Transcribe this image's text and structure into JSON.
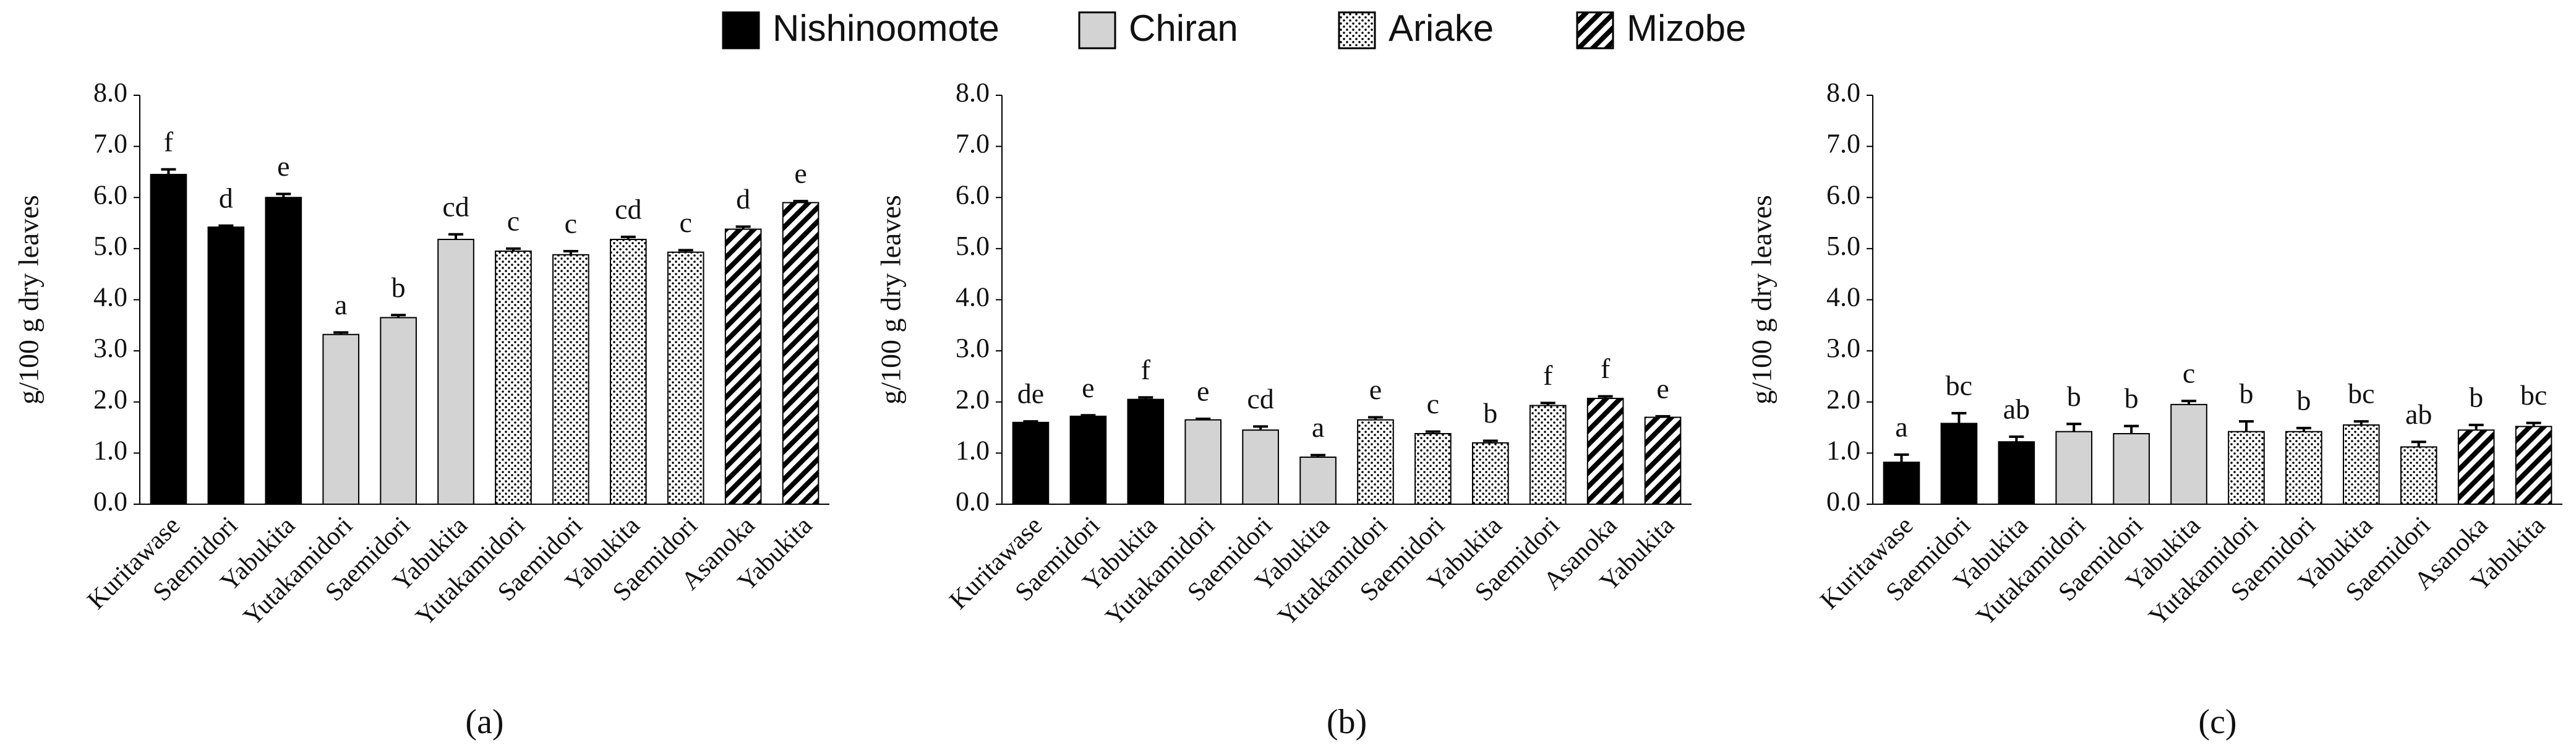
{
  "legend": [
    {
      "name": "Nishinoomote",
      "pattern": "solid",
      "color": "#000000"
    },
    {
      "name": "Chiran",
      "pattern": "solid",
      "color": "#d3d3d3"
    },
    {
      "name": "Ariake",
      "pattern": "dots",
      "color": "#000000"
    },
    {
      "name": "Mizobe",
      "pattern": "diagonal",
      "color": "#000000"
    }
  ],
  "chart_data": [
    {
      "type": "bar",
      "label": "(a)",
      "ylabel": "g/100 g dry leaves",
      "ylim": [
        0,
        8
      ],
      "yticks": [
        {
          "value": 0,
          "label": "0.0"
        },
        {
          "value": 1,
          "label": "1.0"
        },
        {
          "value": 2,
          "label": "2.0"
        },
        {
          "value": 3,
          "label": "3.0"
        },
        {
          "value": 4,
          "label": "4.0"
        },
        {
          "value": 5,
          "label": "5.0"
        },
        {
          "value": 6,
          "label": "6.0"
        },
        {
          "value": 7,
          "label": "7.0"
        },
        {
          "value": 8,
          "label": "8.0"
        }
      ],
      "groups": [
        {
          "categories": [
            "Kuritawase",
            "Saemidori",
            "Yabukita"
          ],
          "values": [
            6.45,
            5.42,
            6.0
          ],
          "errors": [
            0.1,
            0.03,
            0.07
          ],
          "letters": [
            "f",
            "d",
            "e"
          ]
        },
        {
          "categories": [
            "Yutakamidori",
            "Saemidori",
            "Yabukita"
          ],
          "values": [
            3.32,
            3.65,
            5.18
          ],
          "errors": [
            0.04,
            0.05,
            0.1
          ],
          "letters": [
            "a",
            "b",
            "cd"
          ]
        },
        {
          "categories": [
            "Yutakamidori",
            "Saemidori",
            "Yabukita",
            "Saemidori"
          ],
          "values": [
            4.95,
            4.88,
            5.18,
            4.93
          ],
          "errors": [
            0.05,
            0.07,
            0.05,
            0.04
          ],
          "letters": [
            "c",
            "c",
            "cd",
            "c"
          ]
        },
        {
          "categories": [
            "Asanoka",
            "Yabukita"
          ],
          "values": [
            5.38,
            5.9
          ],
          "errors": [
            0.05,
            0.03
          ],
          "letters": [
            "d",
            "e"
          ]
        }
      ]
    },
    {
      "type": "bar",
      "label": "(b)",
      "ylabel": "g/100 g dry leaves",
      "ylim": [
        0,
        8
      ],
      "yticks": [
        {
          "value": 0,
          "label": "0.0"
        },
        {
          "value": 1,
          "label": "1.0"
        },
        {
          "value": 2,
          "label": "2.0"
        },
        {
          "value": 3,
          "label": "3.0"
        },
        {
          "value": 4,
          "label": "4.0"
        },
        {
          "value": 5,
          "label": "5.0"
        },
        {
          "value": 6,
          "label": "6.0"
        },
        {
          "value": 7,
          "label": "7.0"
        },
        {
          "value": 8,
          "label": "8.0"
        }
      ],
      "groups": [
        {
          "categories": [
            "Kuritawase",
            "Saemidori",
            "Yabukita"
          ],
          "values": [
            1.6,
            1.72,
            2.05
          ],
          "errors": [
            0.02,
            0.02,
            0.04
          ],
          "letters": [
            "de",
            "e",
            "f"
          ]
        },
        {
          "categories": [
            "Yutakamidori",
            "Saemidori",
            "Yabukita"
          ],
          "values": [
            1.65,
            1.45,
            0.92
          ],
          "errors": [
            0.02,
            0.07,
            0.04
          ],
          "letters": [
            "e",
            "cd",
            "a"
          ]
        },
        {
          "categories": [
            "Yutakamidori",
            "Saemidori",
            "Yabukita",
            "Saemidori"
          ],
          "values": [
            1.65,
            1.38,
            1.2,
            1.93
          ],
          "errors": [
            0.05,
            0.04,
            0.04,
            0.05
          ],
          "letters": [
            "e",
            "c",
            "b",
            "f"
          ]
        },
        {
          "categories": [
            "Asanoka",
            "Yabukita"
          ],
          "values": [
            2.07,
            1.7
          ],
          "errors": [
            0.04,
            0.02
          ],
          "letters": [
            "f",
            "e"
          ]
        }
      ]
    },
    {
      "type": "bar",
      "label": "(c)",
      "ylabel": "g/100 g dry leaves",
      "ylim": [
        0,
        8
      ],
      "yticks": [
        {
          "value": 0,
          "label": "0.0"
        },
        {
          "value": 1,
          "label": "1.0"
        },
        {
          "value": 2,
          "label": "2.0"
        },
        {
          "value": 3,
          "label": "3.0"
        },
        {
          "value": 4,
          "label": "4.0"
        },
        {
          "value": 5,
          "label": "5.0"
        },
        {
          "value": 6,
          "label": "6.0"
        },
        {
          "value": 7,
          "label": "7.0"
        },
        {
          "value": 8,
          "label": "8.0"
        }
      ],
      "groups": [
        {
          "categories": [
            "Kuritawase",
            "Saemidori",
            "Yabukita"
          ],
          "values": [
            0.82,
            1.58,
            1.22
          ],
          "errors": [
            0.15,
            0.2,
            0.1
          ],
          "letters": [
            "a",
            "bc",
            "ab"
          ]
        },
        {
          "categories": [
            "Yutakamidori",
            "Saemidori",
            "Yabukita"
          ],
          "values": [
            1.42,
            1.38,
            1.95
          ],
          "errors": [
            0.15,
            0.15,
            0.07
          ],
          "letters": [
            "b",
            "b",
            "c"
          ]
        },
        {
          "categories": [
            "Yutakamidori",
            "Saemidori",
            "Yabukita",
            "Saemidori"
          ],
          "values": [
            1.42,
            1.42,
            1.55,
            1.12
          ],
          "errors": [
            0.2,
            0.07,
            0.07,
            0.1
          ],
          "letters": [
            "b",
            "b",
            "bc",
            "ab"
          ]
        },
        {
          "categories": [
            "Asanoka",
            "Yabukita"
          ],
          "values": [
            1.45,
            1.52
          ],
          "errors": [
            0.1,
            0.07
          ],
          "letters": [
            "b",
            "bc"
          ]
        }
      ]
    }
  ]
}
